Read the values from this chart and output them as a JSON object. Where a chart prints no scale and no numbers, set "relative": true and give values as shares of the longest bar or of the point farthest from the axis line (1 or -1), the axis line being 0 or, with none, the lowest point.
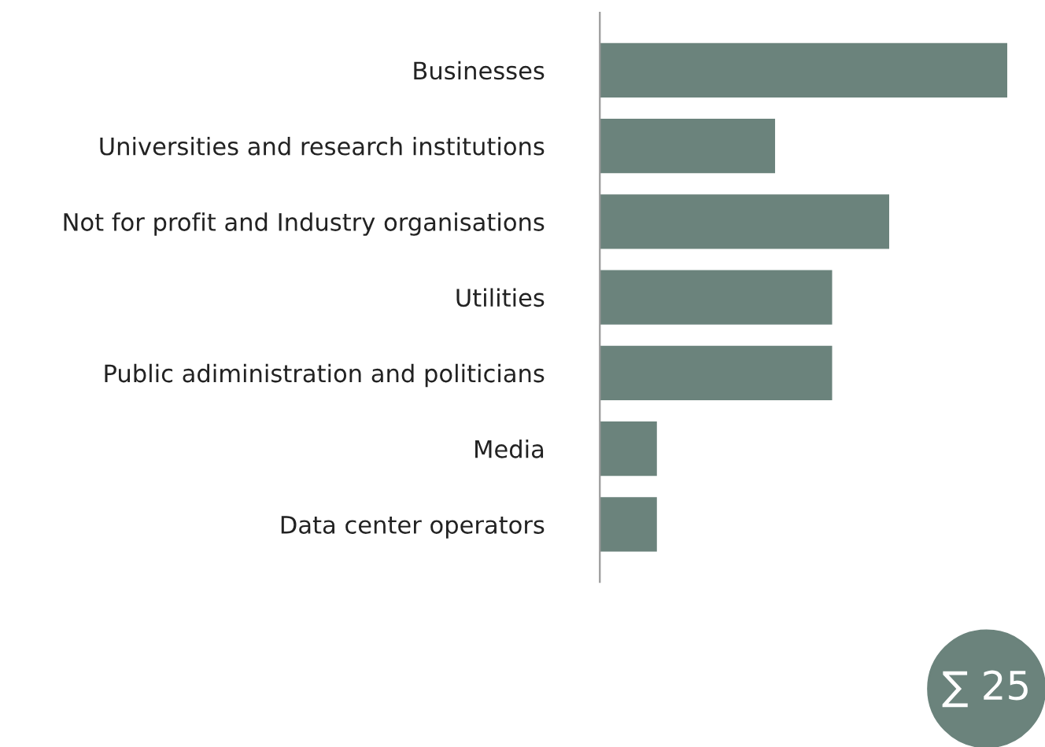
{
  "chart_data": {
    "type": "bar",
    "orientation": "horizontal",
    "relative": true,
    "categories": [
      "Businesses",
      "Universities and research institutions",
      "Not for profit and Industry organisations",
      "Utilities",
      "Public adiministration and politicians",
      "Media",
      "Data center operators"
    ],
    "values": [
      1,
      0.43,
      0.71,
      0.57,
      0.57,
      0.14,
      0.14
    ],
    "color": "#6b837c",
    "annotations": [
      "∑ 25"
    ]
  }
}
